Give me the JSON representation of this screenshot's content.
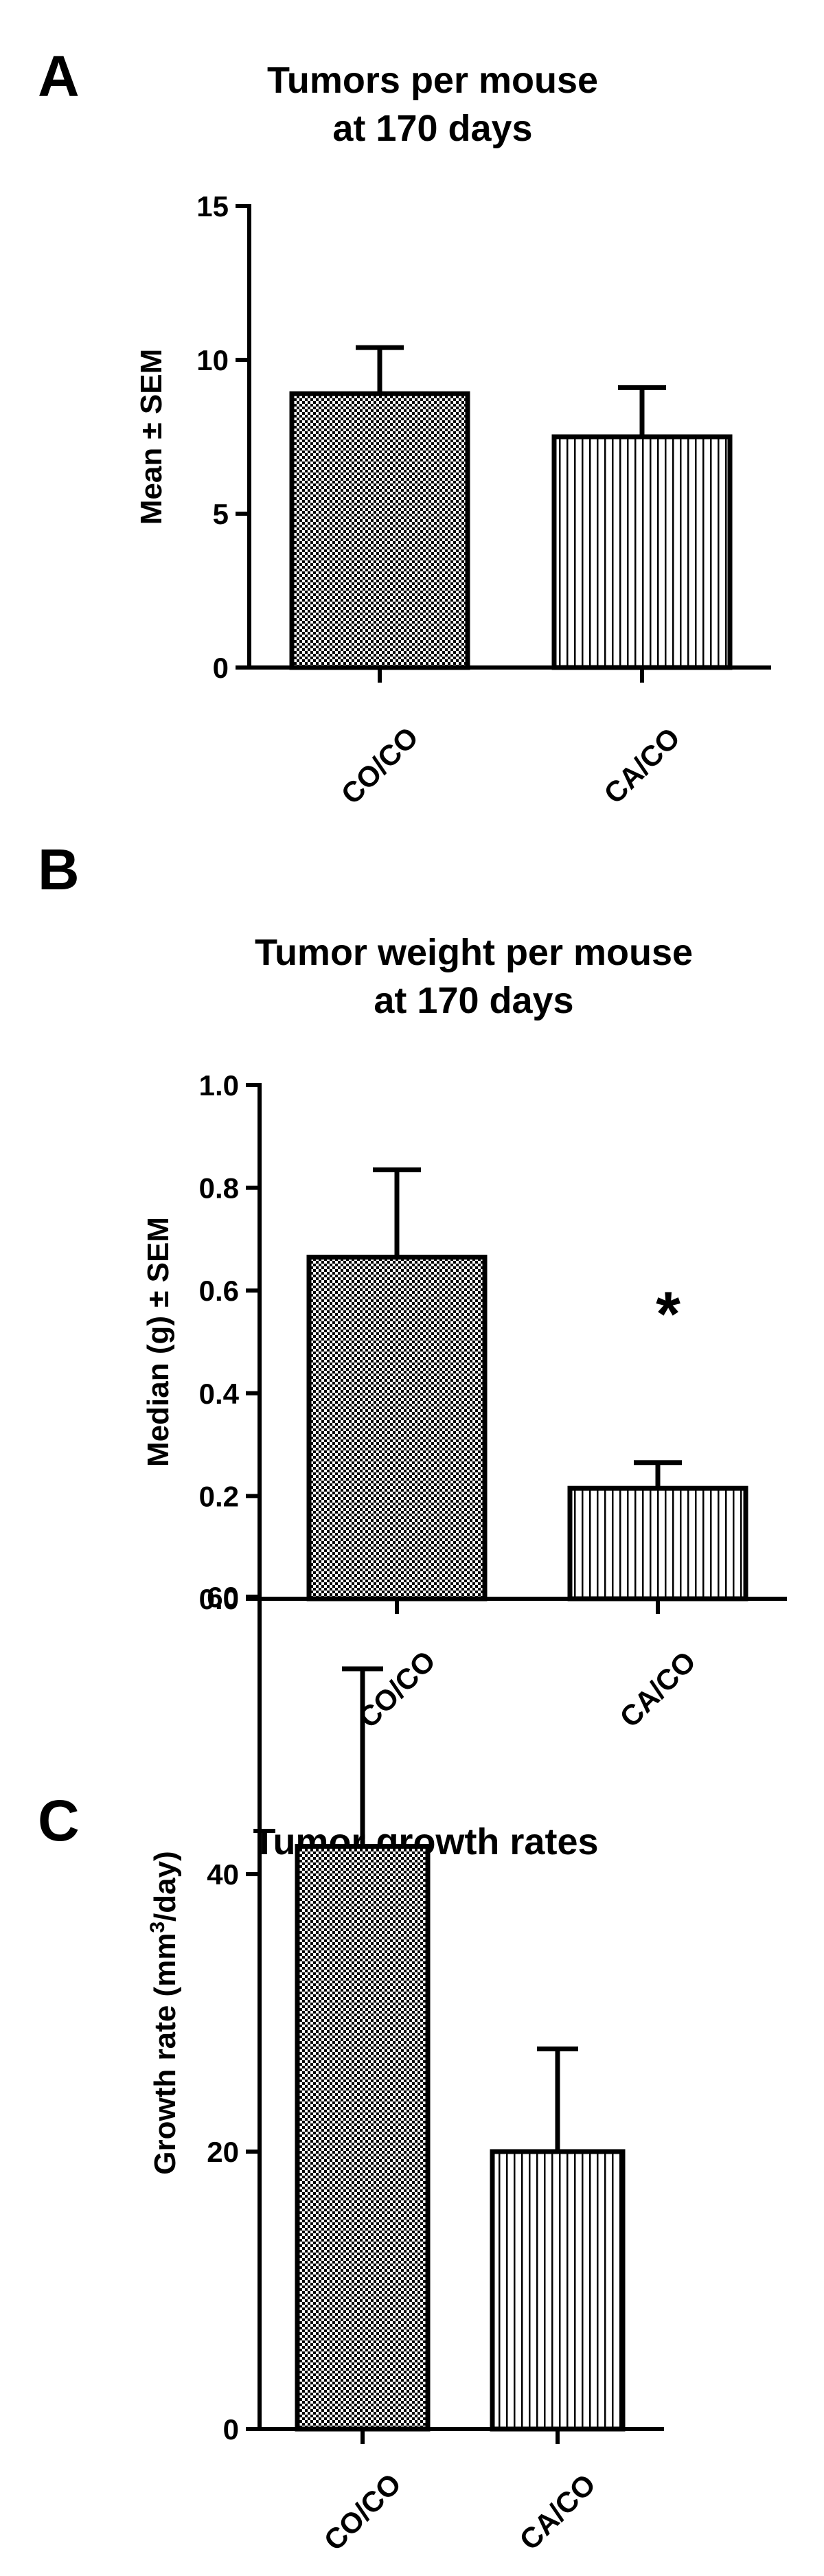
{
  "figure": {
    "panels": [
      {
        "letter": "A",
        "title_lines": [
          "Tumors per mouse",
          "at 170 days"
        ]
      },
      {
        "letter": "B",
        "title_lines": [
          "Tumor weight per mouse",
          "at 170 days"
        ]
      },
      {
        "letter": "C",
        "title_lines": [
          "Tumor growth rates"
        ]
      }
    ]
  },
  "colors": {
    "axis": "#000000",
    "bar_fill": "#ffffff",
    "pattern": "#000000"
  },
  "chart_data": [
    {
      "type": "bar",
      "title": "Tumors per mouse at 170 days",
      "xlabel": "",
      "ylabel": "Mean ± SEM",
      "ylim": [
        0,
        15
      ],
      "yticks": [
        0,
        5,
        10,
        15
      ],
      "ytick_labels": [
        "0",
        "5",
        "10",
        "15"
      ],
      "categories": [
        "CO/CO",
        "CA/CO"
      ],
      "values": [
        8.9,
        7.5
      ],
      "errors": [
        1.5,
        1.6
      ],
      "fill_patterns": [
        "checker",
        "vertical-lines"
      ],
      "annotations": [],
      "grid": false
    },
    {
      "type": "bar",
      "title": "Tumor weight per mouse at 170 days",
      "xlabel": "",
      "ylabel": "Median (g) ± SEM",
      "ylim": [
        0,
        1.0
      ],
      "yticks": [
        0,
        0.2,
        0.4,
        0.6,
        0.8,
        1.0
      ],
      "ytick_labels": [
        "0.0",
        "0.2",
        "0.4",
        "0.6",
        "0.8",
        "1.0"
      ],
      "categories": [
        "CO/CO",
        "CA/CO"
      ],
      "values": [
        0.665,
        0.215
      ],
      "errors": [
        0.17,
        0.05
      ],
      "fill_patterns": [
        "checker",
        "vertical-lines"
      ],
      "annotations": [
        {
          "category": "CA/CO",
          "text": "*"
        }
      ],
      "grid": false
    },
    {
      "type": "bar",
      "title": "Tumor growth rates",
      "xlabel": "",
      "ylabel": "Growth rate (mm",
      "ylabel_superscript": "3",
      "ylabel_suffix": "/day)",
      "ylim": [
        0,
        60
      ],
      "yticks": [
        0,
        20,
        40,
        60
      ],
      "ytick_labels": [
        "0",
        "20",
        "40",
        "60"
      ],
      "categories": [
        "CO/CO",
        "CA/CO"
      ],
      "values": [
        42,
        20
      ],
      "errors": [
        12.8,
        7.4
      ],
      "fill_patterns": [
        "checker",
        "vertical-lines"
      ],
      "annotations": [],
      "grid": false
    }
  ]
}
